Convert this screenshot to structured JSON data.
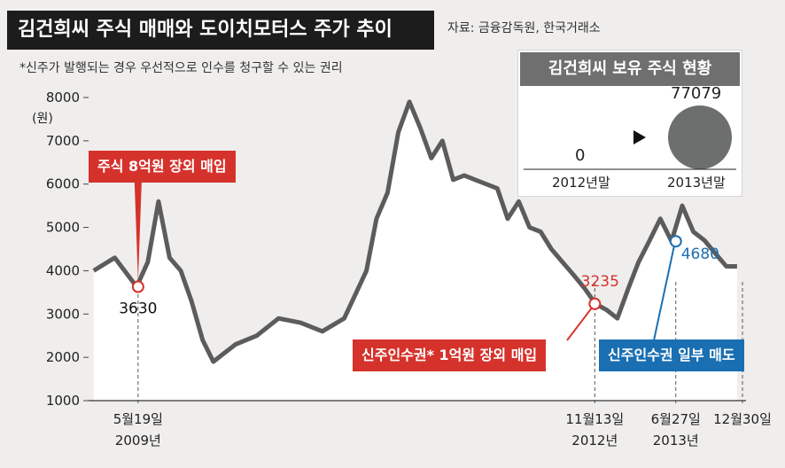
{
  "header": {
    "title": "김건희씨 주식 매매와 도이치모터스 주가 추이",
    "source": "자료: 금융감독원, 한국거래소",
    "footnote": "*신주가 발행되는 경우 우선적으로 인수를 청구할 수 있는 권리"
  },
  "colors": {
    "line": "#5c5c5c",
    "red": "#d6322c",
    "blue": "#1a6fb2",
    "area": "#ffffff",
    "background": "#efeeed"
  },
  "chart_data": {
    "type": "line",
    "ylabel": "(원)",
    "ylim": [
      1000,
      8000
    ],
    "yticks": [
      1000,
      2000,
      3000,
      4000,
      5000,
      6000,
      7000,
      8000
    ],
    "x_tick_labels": [
      {
        "date": "2009-05-19",
        "line1": "5월19일",
        "line2": "2009년"
      },
      {
        "date": "2012-11-13",
        "line1": "11월13일",
        "line2": "2012년"
      },
      {
        "date": "2013-06-27",
        "line1": "6월27일",
        "line2": "2013년"
      },
      {
        "date": "2013-12-30",
        "line1": "12월30일",
        "line2": ""
      }
    ],
    "series": [
      {
        "x": [
          "2009-01",
          "2009-03",
          "2009-05",
          "2009-06",
          "2009-07",
          "2009-08",
          "2009-09",
          "2009-10",
          "2009-11",
          "2009-12",
          "2010-02",
          "2010-04",
          "2010-06",
          "2010-08",
          "2010-10",
          "2010-12",
          "2011-02",
          "2011-03",
          "2011-04",
          "2011-05",
          "2011-06",
          "2011-07",
          "2011-08",
          "2011-09",
          "2011-10",
          "2011-11",
          "2011-12",
          "2012-01",
          "2012-02",
          "2012-03",
          "2012-04",
          "2012-05",
          "2012-06",
          "2012-07",
          "2012-08",
          "2012-09",
          "2012-10",
          "2012-11",
          "2012-12",
          "2013-01",
          "2013-02",
          "2013-03",
          "2013-04",
          "2013-05",
          "2013-06",
          "2013-07",
          "2013-08",
          "2013-09",
          "2013-10",
          "2013-11",
          "2013-12"
        ],
        "values": [
          4000,
          4300,
          3630,
          4200,
          5600,
          4300,
          4000,
          3300,
          2400,
          1900,
          2300,
          2500,
          2900,
          2800,
          2600,
          2900,
          4000,
          5200,
          5800,
          7200,
          7900,
          7300,
          6600,
          7000,
          6100,
          6200,
          6100,
          6000,
          5900,
          5200,
          5600,
          5000,
          4900,
          4500,
          4200,
          3900,
          3600,
          3235,
          3100,
          2900,
          3600,
          4200,
          4700,
          5200,
          4680,
          5500,
          4900,
          4700,
          4400,
          4100,
          4100
        ]
      }
    ],
    "annotations": [
      {
        "date": "2009-05-19",
        "value": 3630,
        "label": "3630",
        "color": "red"
      },
      {
        "date": "2012-11-13",
        "value": 3235,
        "label": "3235",
        "color": "red"
      },
      {
        "date": "2013-06-27",
        "value": 4680,
        "label": "4680",
        "color": "blue"
      }
    ]
  },
  "callouts": [
    {
      "text": "주식 8억원 장외 매입",
      "color": "red"
    },
    {
      "text": "신주인수권* 1억원 장외 매입",
      "color": "red"
    },
    {
      "text": "신주인수권 일부 매도",
      "color": "blue"
    }
  ],
  "inset": {
    "title": "김건희씨 보유 주식 현황",
    "bars": [
      {
        "period": "2012년말",
        "value": "0"
      },
      {
        "period": "2013년말",
        "value": "77079"
      }
    ]
  }
}
